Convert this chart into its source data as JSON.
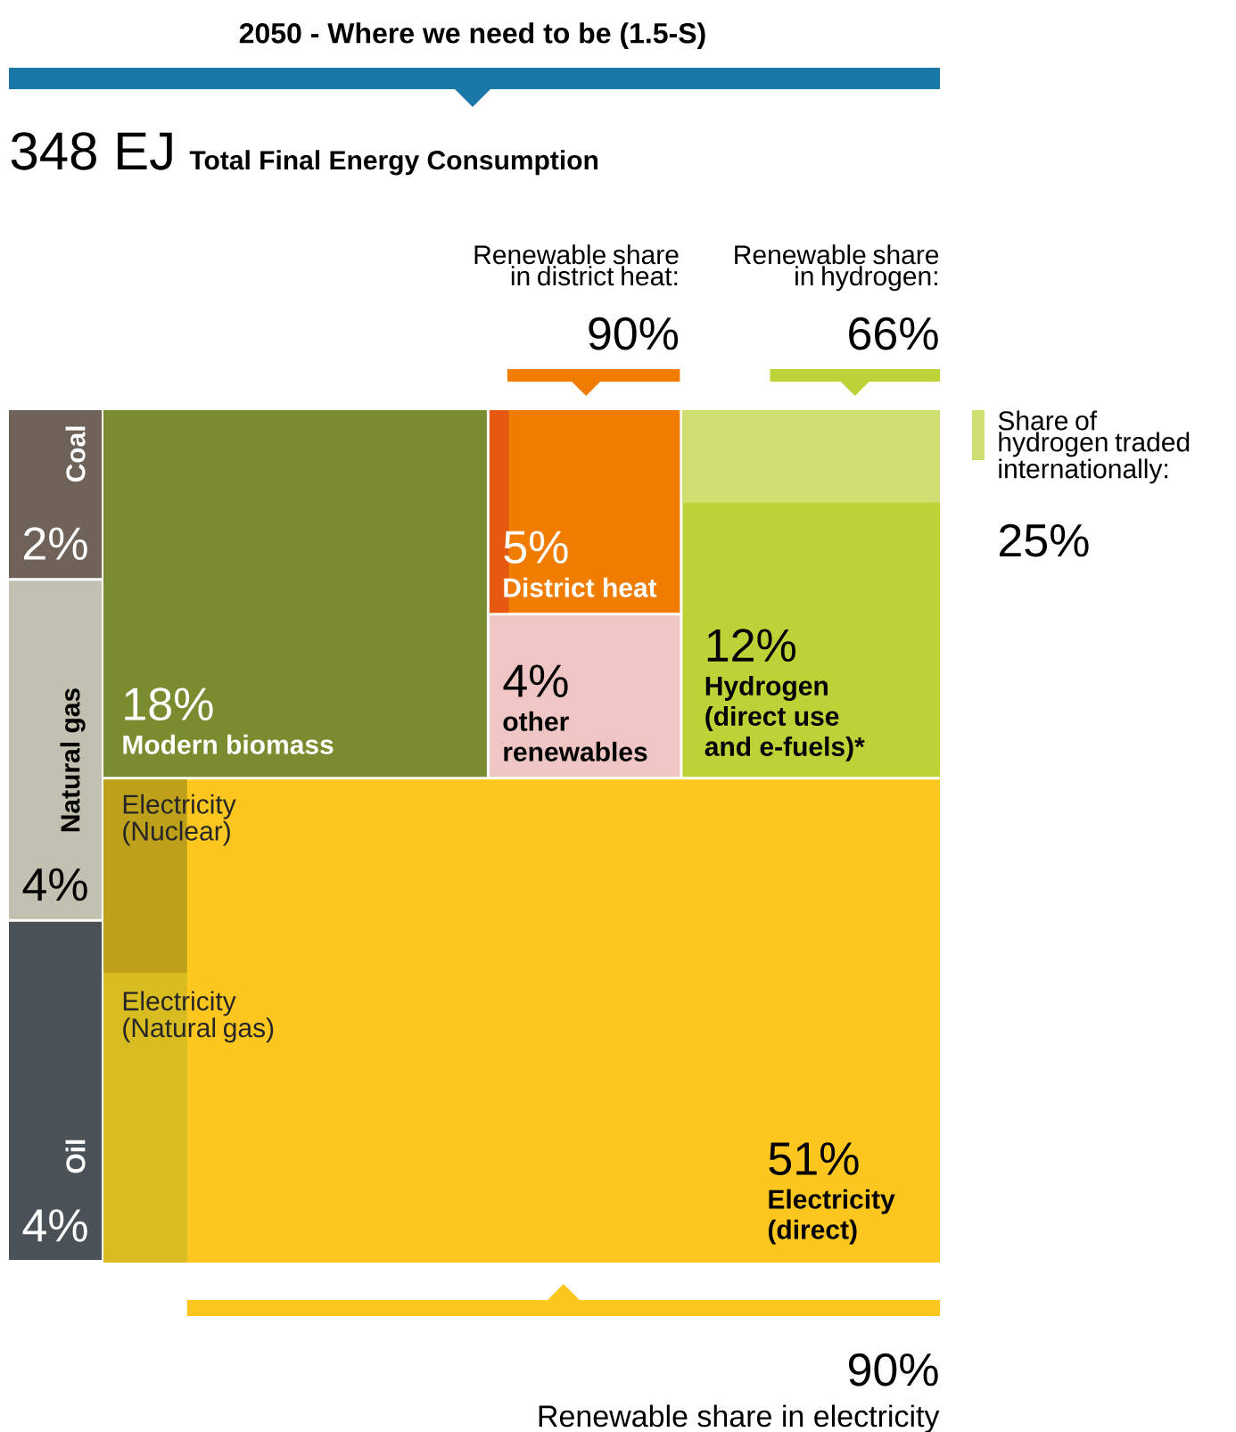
{
  "chart_data": {
    "type": "other",
    "title": "2050  -  Where we need to be (1.5-S)",
    "subtitle": "Total Final Energy Consumption",
    "categories": [
      "Coal",
      "Natural gas",
      "Oil",
      "Modern biomass",
      "District heat",
      "other renewables",
      "Hydrogen (direct use and e-fuels)*",
      "Electricity (direct)"
    ],
    "values": [
      2,
      4,
      4,
      18,
      5,
      4,
      12,
      51
    ],
    "value_labels": [
      "2%",
      "4%",
      "4%",
      "18%",
      "5%",
      "4%",
      "12%",
      "51%"
    ],
    "colors": [
      "#6e6259",
      "#c2c0b0",
      "#4a5157",
      "#7a8c30",
      "#f07d00",
      "#f0c6c4",
      "#bcd236",
      "#fdc71f"
    ],
    "annotations": [
      "348 EJ",
      "Renewable share in district heat:",
      "90%",
      "Renewable share in hydrogen:",
      "66%",
      "Share of hydrogen traded internationally:",
      "25%",
      "90%",
      "Renewable share in electricity",
      "Electricity (Nuclear)",
      "Electricity (Natural gas)"
    ]
  }
}
